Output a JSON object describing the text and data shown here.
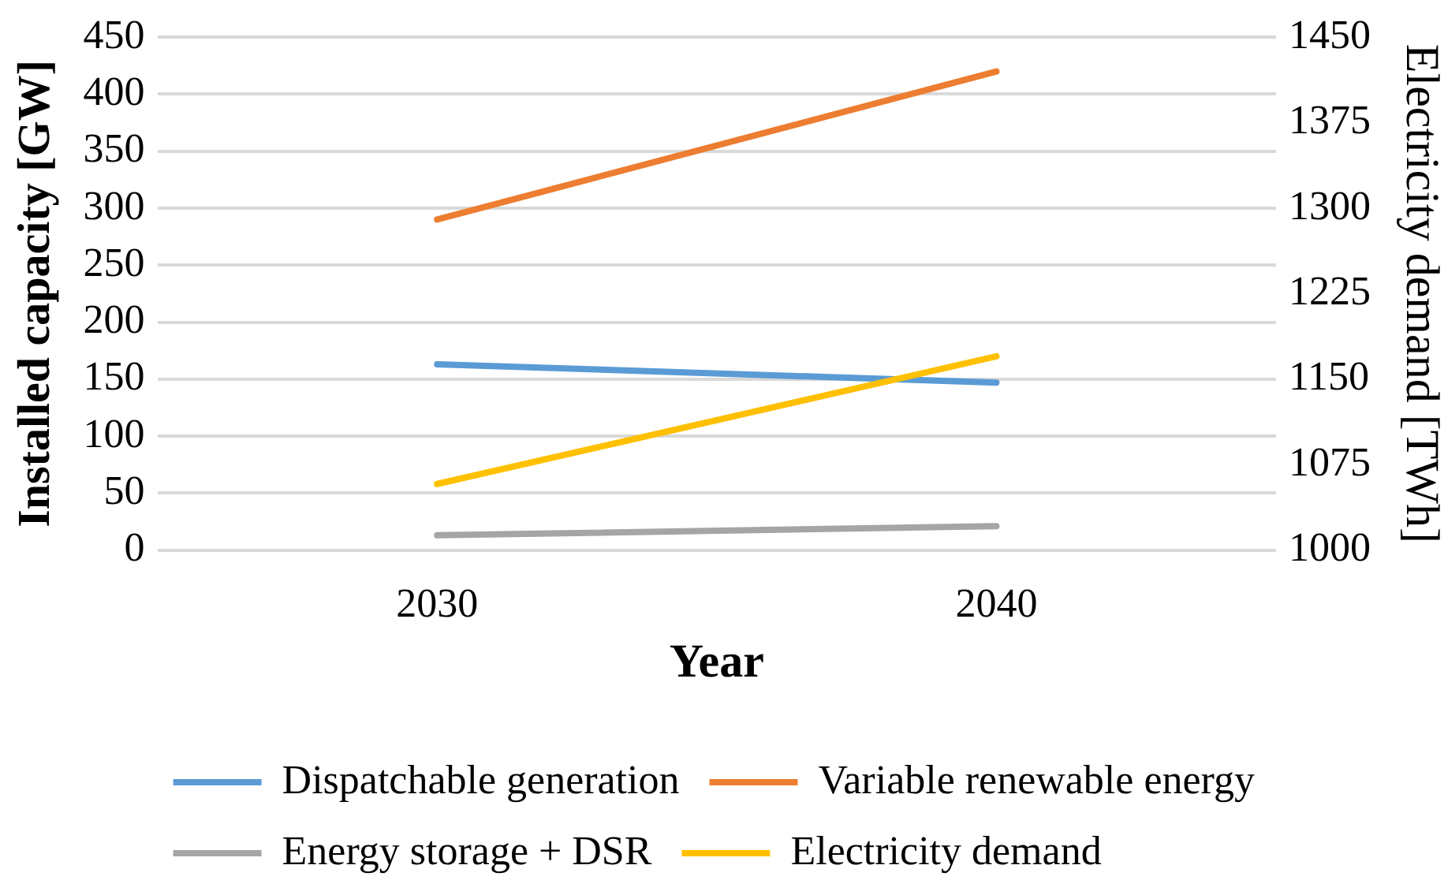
{
  "chart_data": {
    "type": "line",
    "xlabel": "Year",
    "ylabel": "Installed capacity [GW]",
    "y2label": "Electricity demand [TWh]",
    "categories": [
      "2030",
      "2040"
    ],
    "series": [
      {
        "name": "Dispatchable generation",
        "color": "#5b9bd5",
        "values": [
          163,
          147
        ]
      },
      {
        "name": "Variable renewable energy",
        "color": "#ed7d31",
        "values": [
          290,
          420
        ]
      },
      {
        "name": "Energy storage + DSR",
        "color": "#a5a5a5",
        "values": [
          13,
          21
        ]
      },
      {
        "name": "Electricity demand",
        "color": "#ffc000",
        "values": [
          1058,
          1170
        ],
        "axis": "y2"
      }
    ],
    "ylim": [
      0,
      450
    ],
    "yticks": [
      0,
      50,
      100,
      150,
      200,
      250,
      300,
      350,
      400,
      450
    ],
    "y2lim": [
      1000,
      1450
    ],
    "y2ticks": [
      1000,
      1075,
      1150,
      1225,
      1300,
      1375,
      1450
    ],
    "grid": "y",
    "legend": "bottom",
    "marker": "none",
    "line_style": "solid"
  }
}
